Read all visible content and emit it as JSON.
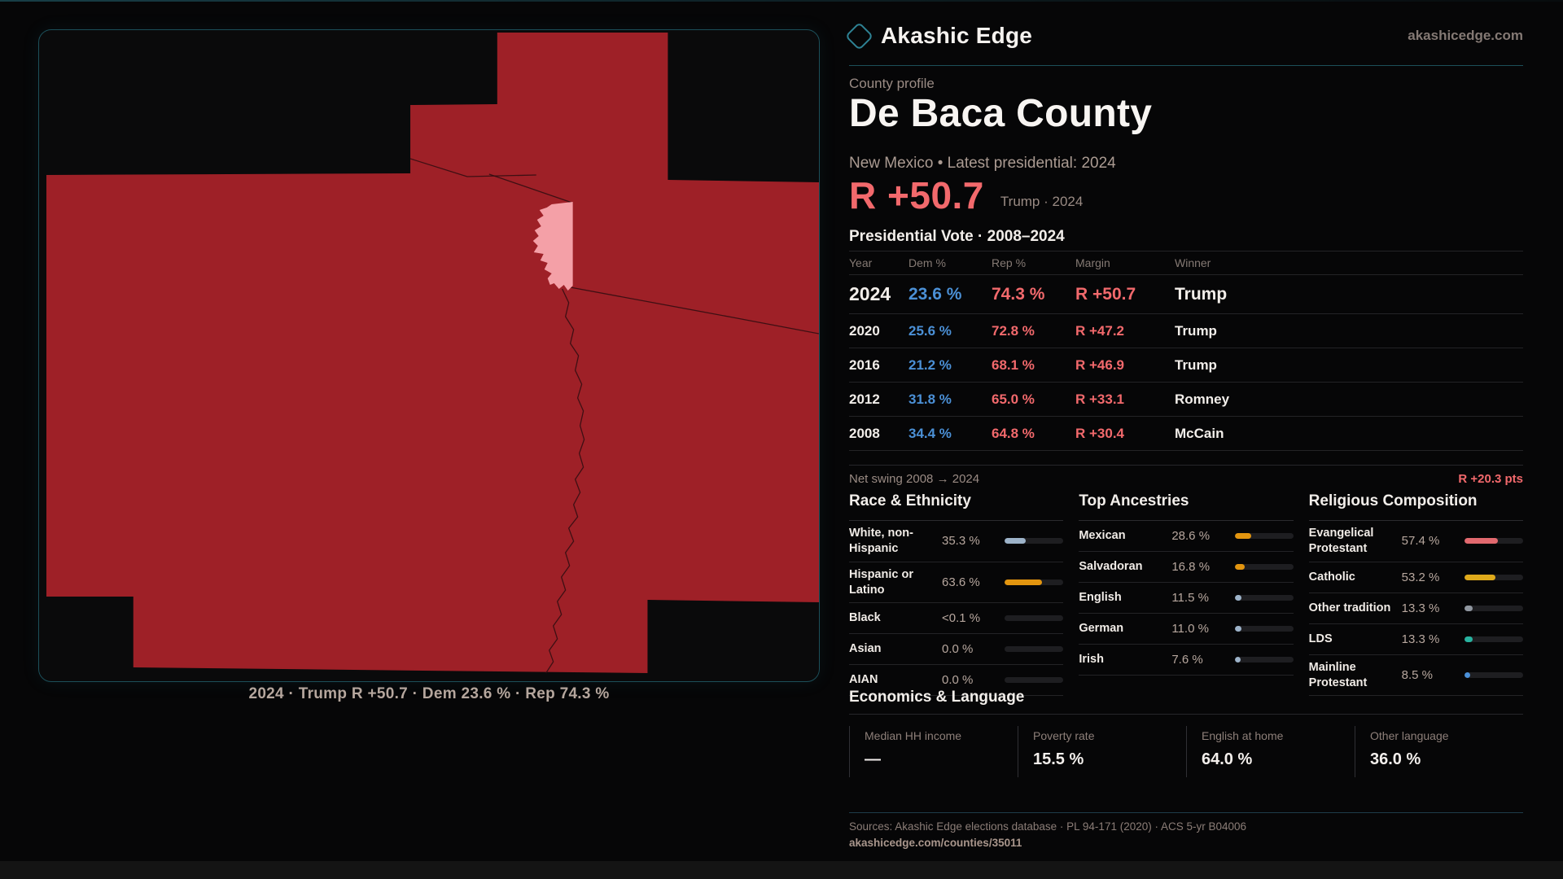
{
  "brand": {
    "name": "Akashic Edge",
    "domain": "akashicedge.com"
  },
  "page": {
    "eyebrow": "County profile",
    "title": "De Baca County",
    "subtitle": "New Mexico • Latest presidential: 2024"
  },
  "headline": {
    "margin": "R +50.7",
    "context": "Trump · 2024"
  },
  "vote_table": {
    "title": "Presidential Vote · 2008–2024",
    "columns": [
      "Year",
      "Dem %",
      "Rep %",
      "Margin",
      "Winner"
    ],
    "rows": [
      {
        "year": "2024",
        "dem": "23.6 %",
        "rep": "74.3 %",
        "margin": "R +50.7",
        "winner": "Trump",
        "emphasis": true
      },
      {
        "year": "2020",
        "dem": "25.6 %",
        "rep": "72.8 %",
        "margin": "R +47.2",
        "winner": "Trump"
      },
      {
        "year": "2016",
        "dem": "21.2 %",
        "rep": "68.1 %",
        "margin": "R +46.9",
        "winner": "Trump"
      },
      {
        "year": "2012",
        "dem": "31.8 %",
        "rep": "65.0 %",
        "margin": "R +33.1",
        "winner": "Romney"
      },
      {
        "year": "2008",
        "dem": "34.4 %",
        "rep": "64.8 %",
        "margin": "R +30.4",
        "winner": "McCain"
      }
    ]
  },
  "net_swing": {
    "label": "Net swing 2008 → 2024",
    "value": "R +20.3 pts"
  },
  "demographics": [
    {
      "title": "Race & Ethnicity",
      "rows": [
        {
          "label": "White, non-Hispanic",
          "value": "35.3 %",
          "pct": 35.3,
          "color": "#9db3c9"
        },
        {
          "label": "Hispanic or Latino",
          "value": "63.6 %",
          "pct": 63.6,
          "color": "#e2950f"
        },
        {
          "label": "Black",
          "value": "<0.1 %",
          "pct": 0,
          "color": "#9db3c9"
        },
        {
          "label": "Asian",
          "value": "0.0 %",
          "pct": 0,
          "color": "#9db3c9"
        },
        {
          "label": "AIAN",
          "value": "0.0 %",
          "pct": 0,
          "color": "#9db3c9"
        }
      ]
    },
    {
      "title": "Top Ancestries",
      "rows": [
        {
          "label": "Mexican",
          "value": "28.6 %",
          "pct": 28.6,
          "color": "#e2950f"
        },
        {
          "label": "Salvadoran",
          "value": "16.8 %",
          "pct": 16.8,
          "color": "#e2950f"
        },
        {
          "label": "English",
          "value": "11.5 %",
          "pct": 11.5,
          "color": "#9db3c9"
        },
        {
          "label": "German",
          "value": "11.0 %",
          "pct": 11.0,
          "color": "#9db3c9"
        },
        {
          "label": "Irish",
          "value": "7.6 %",
          "pct": 7.6,
          "color": "#9db3c9"
        }
      ]
    },
    {
      "title": "Religious Composition",
      "rows": [
        {
          "label": "Evangelical Protestant",
          "value": "57.4 %",
          "pct": 57.4,
          "color": "#e2696f"
        },
        {
          "label": "Catholic",
          "value": "53.2 %",
          "pct": 53.2,
          "color": "#dfaa1b"
        },
        {
          "label": "Other tradition",
          "value": "13.3 %",
          "pct": 13.3,
          "color": "#9097a0"
        },
        {
          "label": "LDS",
          "value": "13.3 %",
          "pct": 13.3,
          "color": "#28b3a0"
        },
        {
          "label": "Mainline Protestant",
          "value": "8.5 %",
          "pct": 8.5,
          "color": "#4a90d9"
        }
      ]
    }
  ],
  "economics": {
    "title": "Economics & Language",
    "stats": [
      {
        "label": "Median HH income",
        "value": "—"
      },
      {
        "label": "Poverty rate",
        "value": "15.5 %"
      },
      {
        "label": "English at home",
        "value": "64.0 %"
      },
      {
        "label": "Other language",
        "value": "36.0 %"
      }
    ]
  },
  "map": {
    "caption": "2024 · Trump R +50.7 · Dem 23.6 % · Rep 74.3 %",
    "state_fill": "#9e2027",
    "county_fill": "#f4a0a7",
    "county_name": "De Baca"
  },
  "footer": {
    "sources": "Sources: Akashic Edge elections database · PL 94-171 (2020) · ACS 5-yr B04006",
    "permalink": "akashicedge.com/counties/35011"
  }
}
